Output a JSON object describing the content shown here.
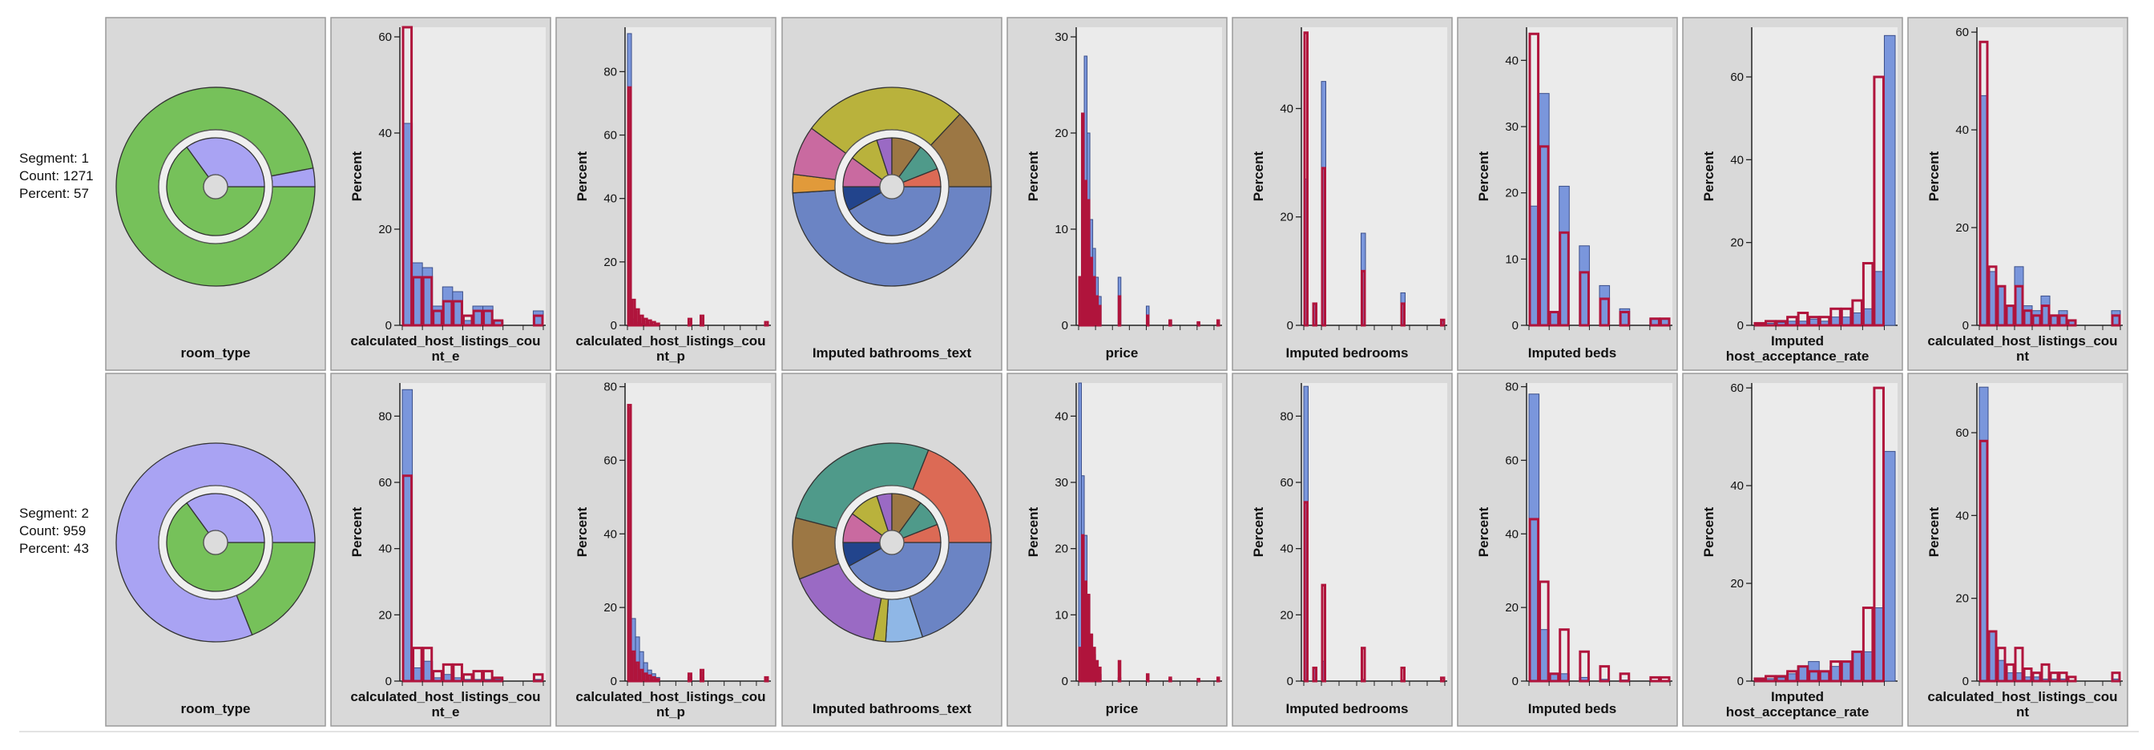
{
  "segments": [
    {
      "segment_label": "Segment: 1",
      "count_label": "Count: 1271",
      "percent_label": "Percent: 57"
    },
    {
      "segment_label": "Segment: 2",
      "count_label": "Count: 959",
      "percent_label": "Percent: 43"
    }
  ],
  "colors": {
    "panel_bg": "#d9d9d9",
    "plot_bg": "#ebebeb",
    "blue_bar": "#7a96dc",
    "red_outline": "#b0143c",
    "green": "#76c15a",
    "lavender": "#a9a3f3"
  },
  "chart_data": [
    {
      "type": "pie",
      "panel": "room_type",
      "row": 1,
      "xlabel": "room_type",
      "outer": [
        {
          "label": "green",
          "value": 97,
          "color": "#76c15a"
        },
        {
          "label": "lavender",
          "value": 3,
          "color": "#a9a3f3"
        }
      ],
      "inner": [
        {
          "label": "green",
          "value": 65,
          "color": "#76c15a"
        },
        {
          "label": "lavender",
          "value": 35,
          "color": "#a9a3f3"
        }
      ]
    },
    {
      "type": "bar",
      "panel": "calculated_host_listings_count_e",
      "row": 1,
      "xlabel": "calculated_host_listings_cou nt_e",
      "ylabel": "Percent",
      "ylim": [
        0,
        62
      ],
      "yticks": [
        0,
        20,
        40,
        60
      ],
      "blue": [
        42,
        13,
        12,
        4,
        8,
        7,
        1,
        4,
        4,
        1,
        0,
        0,
        0,
        3
      ],
      "red": [
        62,
        10,
        10,
        3,
        5,
        5,
        2,
        3,
        3,
        1,
        0,
        0,
        0,
        2
      ]
    },
    {
      "type": "bar",
      "panel": "calculated_host_listings_count_p",
      "row": 1,
      "xlabel": "calculated_host_listings_cou nt_p",
      "ylabel": "Percent",
      "ylim": [
        0,
        94
      ],
      "yticks": [
        0,
        20,
        40,
        60,
        80
      ],
      "blue": [
        92,
        2,
        1,
        0.5,
        0.3,
        0.2,
        0.1,
        0.1,
        0,
        0,
        0,
        0,
        0,
        0,
        0,
        0,
        0,
        0,
        0,
        0,
        0,
        0,
        0,
        0,
        0,
        0,
        0,
        0,
        0,
        0,
        0,
        0,
        0,
        0,
        0
      ],
      "red": [
        75,
        8,
        5,
        3,
        2,
        1.5,
        1,
        0.5,
        0,
        0,
        0,
        0,
        0,
        0,
        0,
        2,
        0,
        0,
        3,
        0,
        0,
        0,
        0,
        0,
        0,
        0,
        0,
        0,
        0,
        0,
        0,
        0,
        0,
        0,
        1
      ]
    },
    {
      "type": "pie",
      "panel": "Imputed bathrooms_text",
      "row": 1,
      "xlabel": "Imputed bathrooms_text",
      "outer": [
        {
          "label": "s1",
          "value": 49,
          "color": "#6b84c4"
        },
        {
          "label": "s2",
          "value": 3,
          "color": "#e19a3a"
        },
        {
          "label": "s3",
          "value": 8,
          "color": "#c96aa0"
        },
        {
          "label": "s4",
          "value": 27,
          "color": "#b9b23c"
        },
        {
          "label": "s5",
          "value": 13,
          "color": "#9c7744"
        }
      ],
      "inner": [
        {
          "label": "s1",
          "value": 42,
          "color": "#6b84c4"
        },
        {
          "label": "s2",
          "value": 8,
          "color": "#22448c"
        },
        {
          "label": "s3",
          "value": 10,
          "color": "#c96aa0"
        },
        {
          "label": "s4",
          "value": 10,
          "color": "#b9b23c"
        },
        {
          "label": "s5",
          "value": 5,
          "color": "#9a6ac4"
        },
        {
          "label": "s6",
          "value": 10,
          "color": "#9c7744"
        },
        {
          "label": "s7",
          "value": 9,
          "color": "#4f9a8a"
        },
        {
          "label": "s8",
          "value": 6,
          "color": "#dc6a55"
        }
      ]
    },
    {
      "type": "bar",
      "panel": "price",
      "row": 1,
      "xlabel": "price",
      "ylabel": "Percent",
      "ylim": [
        0,
        31
      ],
      "yticks": [
        0,
        10,
        20,
        30
      ],
      "blue": [
        1,
        12,
        28,
        20,
        11,
        8,
        5,
        3,
        0,
        0,
        0,
        0,
        0,
        0,
        5,
        0,
        0,
        0,
        0,
        0,
        0,
        0,
        0,
        0,
        2,
        0,
        0,
        0,
        0,
        0,
        0,
        0,
        0.5,
        0,
        0,
        0,
        0,
        0,
        0,
        0,
        0,
        0,
        0.3,
        0,
        0,
        0,
        0,
        0,
        0,
        0.2
      ],
      "red": [
        5,
        22,
        15,
        13,
        7,
        5,
        3,
        2,
        0,
        0,
        0,
        0,
        0,
        0,
        3,
        0,
        0,
        0,
        0,
        0,
        0,
        0,
        0,
        0,
        1,
        0,
        0,
        0,
        0,
        0,
        0,
        0,
        0.5,
        0,
        0,
        0,
        0,
        0,
        0,
        0,
        0,
        0,
        0.3,
        0,
        0,
        0,
        0,
        0,
        0,
        0.5
      ]
    },
    {
      "type": "bar",
      "panel": "Imputed bedrooms",
      "row": 1,
      "xlabel": "Imputed bedrooms",
      "ylabel": "Percent",
      "ylim": [
        0,
        55
      ],
      "yticks": [
        0,
        20,
        40
      ],
      "blue": [
        27,
        0,
        4,
        0,
        45,
        0,
        0,
        0,
        0,
        0,
        0,
        0,
        0,
        17,
        0,
        0,
        0,
        0,
        0,
        0,
        0,
        0,
        6,
        0,
        0,
        0,
        0,
        0,
        0,
        0,
        0,
        1
      ],
      "red": [
        54,
        0,
        4,
        0,
        29,
        0,
        0,
        0,
        0,
        0,
        0,
        0,
        0,
        10,
        0,
        0,
        0,
        0,
        0,
        0,
        0,
        0,
        4,
        0,
        0,
        0,
        0,
        0,
        0,
        0,
        0,
        1
      ]
    },
    {
      "type": "bar",
      "panel": "Imputed beds",
      "row": 1,
      "xlabel": "Imputed beds",
      "ylabel": "Percent",
      "ylim": [
        0,
        45
      ],
      "yticks": [
        0,
        10,
        20,
        30,
        40
      ],
      "blue": [
        18,
        35,
        2,
        21,
        0,
        12,
        0,
        6,
        0,
        2.5,
        0,
        0,
        1,
        1
      ],
      "red": [
        44,
        27,
        2,
        14,
        0,
        8,
        0,
        4,
        0,
        2,
        0,
        0,
        1,
        1
      ]
    },
    {
      "type": "bar",
      "panel": "Imputed host_acceptance_rate",
      "row": 1,
      "xlabel": "Imputed host_acceptance_rate",
      "ylabel": "Percent",
      "ylim": [
        0,
        72
      ],
      "yticks": [
        0,
        20,
        40,
        60
      ],
      "blue": [
        0.3,
        0.5,
        0.7,
        1,
        1,
        1.5,
        1,
        2,
        2,
        3,
        4,
        13,
        70
      ],
      "red": [
        0.5,
        1,
        1,
        2,
        3,
        2,
        2,
        4,
        4,
        6,
        15,
        60,
        0
      ]
    },
    {
      "type": "bar",
      "panel": "calculated_host_listings_count",
      "row": 1,
      "xlabel": "calculated_host_listings_cou nt",
      "ylabel": "Percent",
      "ylim": [
        0,
        61
      ],
      "yticks": [
        0,
        20,
        40,
        60
      ],
      "blue": [
        47,
        11,
        8,
        4,
        12,
        4,
        3,
        6,
        2,
        3,
        1,
        0,
        0,
        0,
        0,
        3
      ],
      "red": [
        58,
        12,
        8,
        4,
        8,
        3,
        2,
        4,
        2,
        2,
        1,
        0,
        0,
        0,
        0,
        2
      ]
    },
    {
      "type": "pie",
      "panel": "room_type",
      "row": 2,
      "xlabel": "room_type",
      "outer": [
        {
          "label": "green",
          "value": 19,
          "color": "#76c15a"
        },
        {
          "label": "lavender",
          "value": 81,
          "color": "#a9a3f3"
        }
      ],
      "inner": [
        {
          "label": "green",
          "value": 65,
          "color": "#76c15a"
        },
        {
          "label": "lavender",
          "value": 35,
          "color": "#a9a3f3"
        }
      ]
    },
    {
      "type": "bar",
      "panel": "calculated_host_listings_count_e",
      "row": 2,
      "xlabel": "calculated_host_listings_cou nt_e",
      "ylabel": "Percent",
      "ylim": [
        0,
        90
      ],
      "yticks": [
        0,
        20,
        40,
        60,
        80
      ],
      "blue": [
        88,
        4,
        6,
        1,
        2,
        1,
        0.5,
        0.5,
        0.5,
        0.5,
        0,
        0,
        0,
        0.5
      ],
      "red": [
        62,
        10,
        10,
        3,
        5,
        5,
        2,
        3,
        3,
        1,
        0,
        0,
        0,
        2
      ]
    },
    {
      "type": "bar",
      "panel": "calculated_host_listings_count_p",
      "row": 2,
      "xlabel": "calculated_host_listings_cou nt_p",
      "ylabel": "Percent",
      "ylim": [
        0,
        81
      ],
      "yticks": [
        0,
        20,
        40,
        60,
        80
      ],
      "blue": [
        51,
        17,
        12,
        8,
        5,
        3,
        2,
        1,
        0,
        0,
        0,
        0,
        0,
        0,
        0,
        1,
        0,
        0,
        1,
        0,
        0,
        0,
        0,
        0,
        0,
        0,
        0,
        0,
        0,
        0,
        0,
        0,
        0,
        0,
        0
      ],
      "red": [
        75,
        8,
        5,
        3,
        2,
        1.5,
        1,
        0.5,
        0,
        0,
        0,
        0,
        0,
        0,
        0,
        2,
        0,
        0,
        3,
        0,
        0,
        0,
        0,
        0,
        0,
        0,
        0,
        0,
        0,
        0,
        0,
        0,
        0,
        0,
        1
      ]
    },
    {
      "type": "pie",
      "panel": "Imputed bathrooms_text",
      "row": 2,
      "xlabel": "Imputed bathrooms_text",
      "outer": [
        {
          "label": "s1",
          "value": 20,
          "color": "#6b84c4"
        },
        {
          "label": "s2",
          "value": 6,
          "color": "#8fb7e6"
        },
        {
          "label": "s3",
          "value": 2,
          "color": "#b9b23c"
        },
        {
          "label": "s4",
          "value": 16,
          "color": "#9a6ac4"
        },
        {
          "label": "s5",
          "value": 10,
          "color": "#9c7744"
        },
        {
          "label": "s6",
          "value": 27,
          "color": "#4f9a8a"
        },
        {
          "label": "s7",
          "value": 19,
          "color": "#dc6a55"
        }
      ],
      "inner": [
        {
          "label": "s1",
          "value": 42,
          "color": "#6b84c4"
        },
        {
          "label": "s2",
          "value": 8,
          "color": "#22448c"
        },
        {
          "label": "s3",
          "value": 10,
          "color": "#c96aa0"
        },
        {
          "label": "s4",
          "value": 10,
          "color": "#b9b23c"
        },
        {
          "label": "s5",
          "value": 5,
          "color": "#9a6ac4"
        },
        {
          "label": "s6",
          "value": 10,
          "color": "#9c7744"
        },
        {
          "label": "s7",
          "value": 9,
          "color": "#4f9a8a"
        },
        {
          "label": "s8",
          "value": 6,
          "color": "#dc6a55"
        }
      ]
    },
    {
      "type": "bar",
      "panel": "price",
      "row": 2,
      "xlabel": "price",
      "ylabel": "Percent",
      "ylim": [
        0,
        45
      ],
      "yticks": [
        0,
        10,
        20,
        30,
        40
      ],
      "blue": [
        45,
        31,
        22,
        13,
        7,
        4,
        2,
        1,
        0,
        0,
        0,
        0,
        0,
        0,
        0.5,
        0,
        0,
        0,
        0,
        0,
        0,
        0,
        0,
        0,
        0.5,
        0,
        0,
        0,
        0,
        0,
        0,
        0,
        0.3,
        0,
        0,
        0,
        0,
        0,
        0,
        0,
        0,
        0,
        0.2,
        0,
        0,
        0,
        0,
        0,
        0,
        0.1
      ],
      "red": [
        5,
        22,
        15,
        13,
        7,
        5,
        3,
        2,
        0,
        0,
        0,
        0,
        0,
        0,
        3,
        0,
        0,
        0,
        0,
        0,
        0,
        0,
        0,
        0,
        1,
        0,
        0,
        0,
        0,
        0,
        0,
        0,
        0.5,
        0,
        0,
        0,
        0,
        0,
        0,
        0,
        0,
        0,
        0.3,
        0,
        0,
        0,
        0,
        0,
        0,
        0.5
      ]
    },
    {
      "type": "bar",
      "panel": "Imputed bedrooms",
      "row": 2,
      "xlabel": "Imputed bedrooms",
      "ylabel": "Percent",
      "ylim": [
        0,
        90
      ],
      "yticks": [
        0,
        20,
        40,
        60,
        80
      ],
      "blue": [
        89,
        0,
        4,
        0,
        6,
        0,
        0,
        0,
        0,
        0,
        0,
        0,
        0,
        0.5,
        0,
        0,
        0,
        0,
        0,
        0,
        0,
        0,
        0.3,
        0,
        0,
        0,
        0,
        0,
        0,
        0,
        0,
        0.2
      ],
      "red": [
        54,
        0,
        4,
        0,
        29,
        0,
        0,
        0,
        0,
        0,
        0,
        0,
        0,
        10,
        0,
        0,
        0,
        0,
        0,
        0,
        0,
        0,
        4,
        0,
        0,
        0,
        0,
        0,
        0,
        0,
        0,
        1
      ]
    },
    {
      "type": "bar",
      "panel": "Imputed beds",
      "row": 2,
      "xlabel": "Imputed beds",
      "ylabel": "Percent",
      "ylim": [
        0,
        81
      ],
      "yticks": [
        0,
        20,
        40,
        60,
        80
      ],
      "blue": [
        78,
        14,
        2,
        2,
        0,
        1,
        0,
        0.5,
        0,
        0.3,
        0,
        0,
        0.2,
        0.2
      ],
      "red": [
        44,
        27,
        2,
        14,
        0,
        8,
        0,
        4,
        0,
        2,
        0,
        0,
        1,
        1
      ]
    },
    {
      "type": "bar",
      "panel": "Imputed host_acceptance_rate",
      "row": 2,
      "xlabel": "Imputed host_acceptance_rate",
      "ylabel": "Percent",
      "ylim": [
        0,
        61
      ],
      "yticks": [
        0,
        20,
        40,
        60
      ],
      "blue": [
        0.3,
        0.5,
        0.7,
        1.5,
        3,
        4,
        2,
        3,
        4,
        6,
        6,
        15,
        47
      ],
      "red": [
        0.5,
        1,
        1,
        2,
        3,
        2,
        2,
        4,
        4,
        6,
        15,
        60,
        0
      ]
    },
    {
      "type": "bar",
      "panel": "calculated_host_listings_count",
      "row": 2,
      "xlabel": "calculated_host_listings_cou nt",
      "ylabel": "Percent",
      "ylim": [
        0,
        72
      ],
      "yticks": [
        0,
        20,
        40,
        60
      ],
      "blue": [
        71,
        12,
        5,
        2,
        2,
        1,
        1,
        0.5,
        0.5,
        0.5,
        0,
        0,
        0,
        0,
        0,
        0.5
      ],
      "red": [
        58,
        12,
        8,
        4,
        8,
        3,
        2,
        4,
        2,
        2,
        1,
        0,
        0,
        0,
        0,
        2
      ]
    }
  ]
}
